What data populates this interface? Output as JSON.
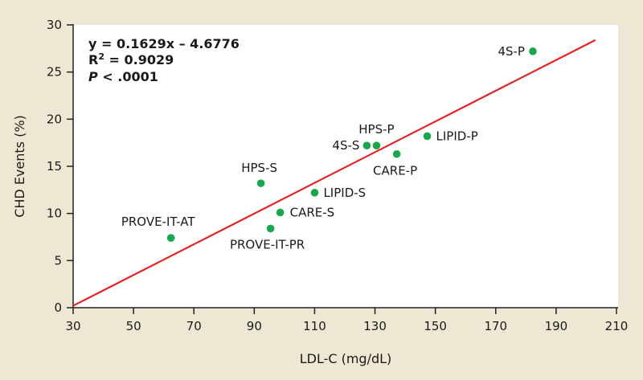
{
  "chart_data": {
    "type": "scatter",
    "xlabel": "LDL-C (mg/dL)",
    "ylabel": "CHD Events (%)",
    "xlim": [
      30,
      210
    ],
    "ylim": [
      0,
      30
    ],
    "xticks": [
      30,
      50,
      70,
      90,
      110,
      130,
      150,
      170,
      190,
      210
    ],
    "yticks": [
      0,
      5,
      10,
      15,
      20,
      25,
      30
    ],
    "grid": false,
    "points": [
      {
        "label": "4S-P",
        "x": 182.3,
        "y": 27.2
      },
      {
        "label": "LIPID-P",
        "x": 147.3,
        "y": 18.2
      },
      {
        "label": "HPS-P",
        "x": 130.5,
        "y": 17.2
      },
      {
        "label": "4S-S",
        "x": 127.3,
        "y": 17.2
      },
      {
        "label": "CARE-P",
        "x": 137.2,
        "y": 16.3
      },
      {
        "label": "HPS-S",
        "x": 92.2,
        "y": 13.2
      },
      {
        "label": "LIPID-S",
        "x": 110.0,
        "y": 12.2
      },
      {
        "label": "CARE-S",
        "x": 98.6,
        "y": 10.1
      },
      {
        "label": "PROVE-IT-PR",
        "x": 95.4,
        "y": 8.4
      },
      {
        "label": "PROVE-IT-AT",
        "x": 62.4,
        "y": 7.4
      }
    ],
    "regression": {
      "slope": 0.1629,
      "intercept": -4.6776,
      "x_range": [
        30,
        203
      ]
    },
    "annotations": {
      "equation": "y = 0.1629x – 4.6776",
      "r2_prefix": "R",
      "r2_sup": "2",
      "r2_value": " = 0.9029",
      "p_symbol": "P",
      "p_value": " < .0001"
    },
    "colors": {
      "point": "#1aa64a",
      "line": "#e02424",
      "background": "#ede7d3",
      "plot": "#ffffff"
    }
  }
}
